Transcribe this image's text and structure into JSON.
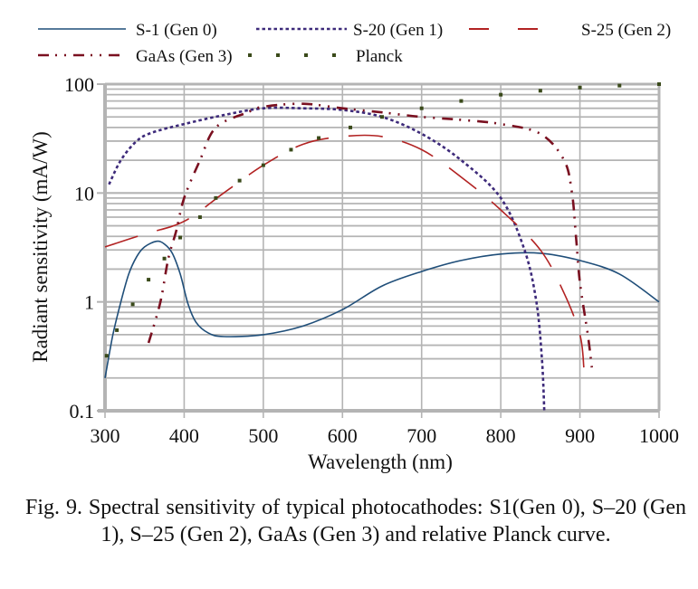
{
  "chart_data": {
    "type": "line",
    "title": "",
    "xlabel": "Wavelength (nm)",
    "ylabel": "Radiant sensitivity (mA/W)",
    "xlim": [
      300,
      1000
    ],
    "ylim": [
      0.1,
      100
    ],
    "yscale": "log",
    "grid": true,
    "legend_position": "top",
    "x_ticks": [
      "300",
      "400",
      "500",
      "600",
      "700",
      "800",
      "900",
      "1000"
    ],
    "y_ticks": [
      "0.1",
      "1",
      "10",
      "100"
    ],
    "series": [
      {
        "name": "S-1 (Gen 0)",
        "color": "#1f4e79",
        "style": "solid",
        "points": [
          [
            300,
            0.2
          ],
          [
            310,
            0.5
          ],
          [
            320,
            1.0
          ],
          [
            330,
            1.8
          ],
          [
            340,
            2.6
          ],
          [
            350,
            3.2
          ],
          [
            365,
            3.6
          ],
          [
            375,
            3.4
          ],
          [
            385,
            2.8
          ],
          [
            395,
            1.8
          ],
          [
            405,
            0.95
          ],
          [
            415,
            0.65
          ],
          [
            430,
            0.52
          ],
          [
            450,
            0.48
          ],
          [
            500,
            0.5
          ],
          [
            550,
            0.6
          ],
          [
            600,
            0.85
          ],
          [
            650,
            1.4
          ],
          [
            700,
            1.9
          ],
          [
            750,
            2.4
          ],
          [
            800,
            2.75
          ],
          [
            850,
            2.8
          ],
          [
            900,
            2.4
          ],
          [
            950,
            1.8
          ],
          [
            1000,
            1.0
          ]
        ]
      },
      {
        "name": "S-20 (Gen 1)",
        "color": "#3d2a7a",
        "style": "dotted",
        "points": [
          [
            305,
            12
          ],
          [
            320,
            20
          ],
          [
            340,
            30
          ],
          [
            360,
            36
          ],
          [
            400,
            43
          ],
          [
            450,
            52
          ],
          [
            500,
            60
          ],
          [
            550,
            60
          ],
          [
            600,
            58
          ],
          [
            650,
            50
          ],
          [
            700,
            35
          ],
          [
            750,
            20
          ],
          [
            800,
            9
          ],
          [
            830,
            3
          ],
          [
            845,
            1
          ],
          [
            852,
            0.3
          ],
          [
            855,
            0.1
          ]
        ]
      },
      {
        "name": "S-25 (Gen 2)",
        "color": "#b22222",
        "style": "long-dash",
        "points": [
          [
            300,
            3.2
          ],
          [
            350,
            4.2
          ],
          [
            400,
            5.5
          ],
          [
            450,
            10
          ],
          [
            500,
            18
          ],
          [
            550,
            28
          ],
          [
            600,
            33
          ],
          [
            650,
            33
          ],
          [
            700,
            25
          ],
          [
            750,
            14
          ],
          [
            800,
            7
          ],
          [
            850,
            3
          ],
          [
            880,
            1.2
          ],
          [
            900,
            0.5
          ],
          [
            905,
            0.25
          ]
        ]
      },
      {
        "name": "GaAs (Gen 3)",
        "color": "#7a1020",
        "style": "dash-dot",
        "points": [
          [
            355,
            0.42
          ],
          [
            370,
            1.0
          ],
          [
            380,
            2.5
          ],
          [
            390,
            4.5
          ],
          [
            400,
            9
          ],
          [
            420,
            20
          ],
          [
            440,
            40
          ],
          [
            480,
            55
          ],
          [
            500,
            62
          ],
          [
            550,
            66
          ],
          [
            600,
            60
          ],
          [
            650,
            55
          ],
          [
            700,
            50
          ],
          [
            750,
            47
          ],
          [
            800,
            43
          ],
          [
            850,
            35
          ],
          [
            880,
            20
          ],
          [
            890,
            10
          ],
          [
            895,
            4
          ],
          [
            900,
            1.5
          ],
          [
            910,
            0.5
          ],
          [
            915,
            0.25
          ]
        ]
      },
      {
        "name": "Planck",
        "color": "#3a4a1a",
        "style": "points",
        "points": [
          [
            302,
            0.32
          ],
          [
            315,
            0.55
          ],
          [
            335,
            0.95
          ],
          [
            355,
            1.6
          ],
          [
            375,
            2.5
          ],
          [
            395,
            3.9
          ],
          [
            420,
            6
          ],
          [
            440,
            9
          ],
          [
            470,
            13
          ],
          [
            500,
            18
          ],
          [
            535,
            25
          ],
          [
            570,
            32
          ],
          [
            610,
            40
          ],
          [
            650,
            50
          ],
          [
            700,
            60
          ],
          [
            750,
            70
          ],
          [
            800,
            80
          ],
          [
            850,
            87
          ],
          [
            900,
            93
          ],
          [
            950,
            97
          ],
          [
            1000,
            100
          ]
        ]
      }
    ]
  },
  "caption": "Fig. 9. Spectral sensitivity of typical photocathodes: S1(Gen 0), S–20 (Gen 1), S–25 (Gen 2), GaAs (Gen 3) and relative Planck curve."
}
